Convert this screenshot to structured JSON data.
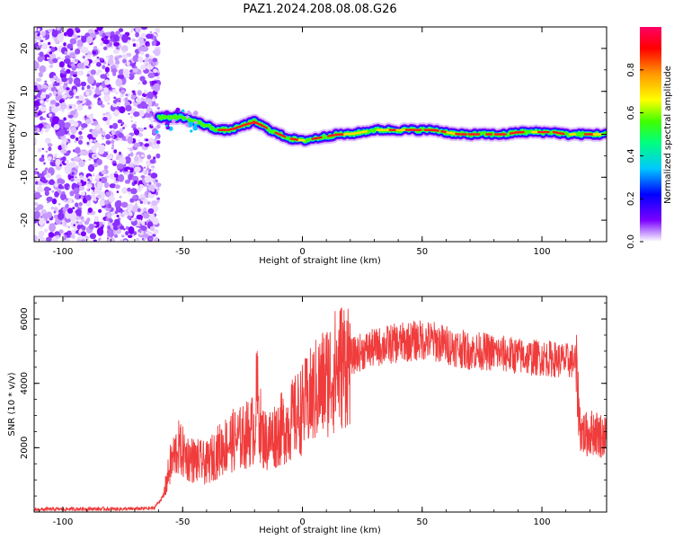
{
  "title": "PAZ1.2024.208.08.08.G26",
  "chart_data": [
    {
      "type": "heatmap",
      "xlabel": "Height of straight line (km)",
      "ylabel": "Frequency (Hz)",
      "xlim": [
        -112,
        127
      ],
      "ylim": [
        -25,
        25
      ],
      "xticks": [
        -100,
        -50,
        0,
        50,
        100
      ],
      "yticks": [
        20,
        10,
        0,
        -10,
        -20
      ],
      "colorbar": {
        "label": "Normalized spectral amplitude",
        "ticks": [
          0.0,
          0.2,
          0.4,
          0.6,
          0.8
        ],
        "range": [
          0.0,
          1.0
        ],
        "colormap": [
          "#ffffff",
          "#c89bff",
          "#7b00ff",
          "#0000ff",
          "#00c8ff",
          "#00ff80",
          "#40ff00",
          "#ffff00",
          "#ff9900",
          "#ff0000",
          "#ff0066"
        ]
      },
      "noise_region": {
        "x": [
          -112,
          -60
        ],
        "y": [
          -25,
          25
        ]
      },
      "signal_track": {
        "x": [
          -60,
          -55,
          -50,
          -45,
          -40,
          -35,
          -30,
          -25,
          -20,
          -15,
          -10,
          -5,
          0,
          5,
          10,
          15,
          20,
          25,
          30,
          35,
          40,
          45,
          50,
          55,
          60,
          65,
          70,
          75,
          80,
          85,
          90,
          95,
          100,
          105,
          110,
          115,
          120,
          127
        ],
        "y": [
          4,
          4,
          4,
          3,
          2,
          1,
          1,
          2,
          3,
          1.5,
          0,
          -1,
          -1.5,
          -1,
          -0.5,
          0,
          0,
          0.5,
          1,
          1,
          1,
          1,
          1,
          1,
          0.5,
          0,
          0,
          0,
          0,
          0,
          0.5,
          0.5,
          0.5,
          0.5,
          0,
          0,
          0,
          0
        ]
      }
    },
    {
      "type": "line",
      "xlabel": "Height of straight line (km)",
      "ylabel": "SNR (10 * v/v)",
      "xlim": [
        -112,
        127
      ],
      "ylim": [
        0,
        6700
      ],
      "xticks": [
        -100,
        -50,
        0,
        50,
        100
      ],
      "yticks": [
        2000,
        4000,
        6000
      ],
      "color": "#f03c3c",
      "series": [
        {
          "x": [
            -112,
            -100,
            -90,
            -80,
            -70,
            -62,
            -58,
            -55,
            -52,
            -48,
            -45,
            -40,
            -35,
            -30,
            -25,
            -20,
            -19,
            -17,
            -15,
            -10,
            -5,
            0,
            5,
            10,
            15,
            20,
            25,
            30,
            35,
            40,
            45,
            50,
            55,
            60,
            65,
            70,
            75,
            80,
            85,
            90,
            95,
            100,
            105,
            110,
            114,
            116,
            118,
            122,
            127
          ],
          "y": [
            80,
            90,
            100,
            95,
            100,
            120,
            500,
            1500,
            2000,
            1700,
            1600,
            1500,
            1900,
            2200,
            2300,
            2600,
            3700,
            2400,
            2200,
            2500,
            2800,
            3200,
            3700,
            4100,
            4500,
            4800,
            5000,
            5100,
            5200,
            5250,
            5300,
            5350,
            5300,
            5200,
            5100,
            5000,
            5000,
            4950,
            4900,
            4850,
            4800,
            4800,
            4750,
            4700,
            4700,
            2600,
            2400,
            2500,
            2300
          ]
        }
      ]
    }
  ]
}
